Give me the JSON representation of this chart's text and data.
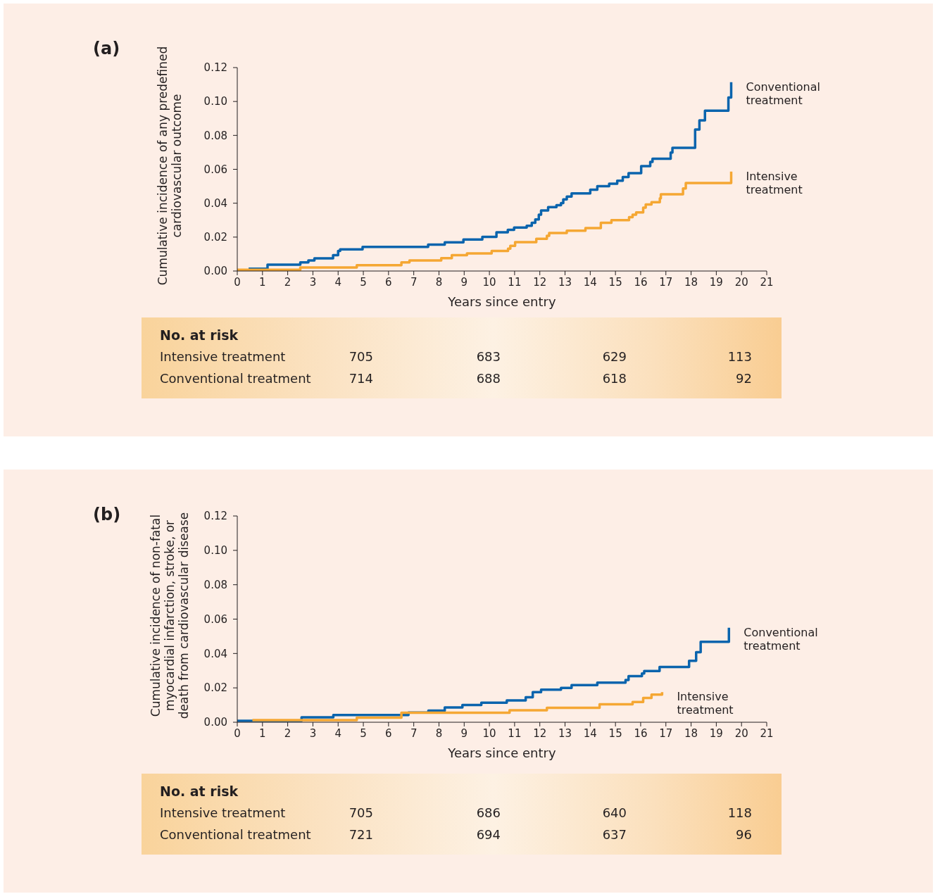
{
  "chart_data": [
    {
      "type": "step",
      "title": "(a)",
      "xlabel": "Years since entry",
      "ylabel": "Cumulative incidence of any predefined\ncardiovascular outcome",
      "xlim": [
        0,
        21
      ],
      "xticks": [
        0,
        1,
        2,
        3,
        4,
        5,
        6,
        7,
        8,
        9,
        10,
        11,
        12,
        13,
        14,
        15,
        16,
        17,
        18,
        19,
        20,
        21
      ],
      "ylim": [
        0,
        0.12
      ],
      "yticks": [
        {
          "value": 0,
          "label": "0.00"
        },
        {
          "value": 0.02,
          "label": "0.02"
        },
        {
          "value": 0.04,
          "label": "0.04"
        },
        {
          "value": 0.06,
          "label": "0.06"
        },
        {
          "value": 0.08,
          "label": "0.08"
        },
        {
          "value": 0.1,
          "label": "0.10"
        },
        {
          "value": 0.12,
          "label": "0.12"
        }
      ],
      "series": [
        {
          "name": "Conventional treatment",
          "color": "#0a64ad",
          "x": [
            0.45,
            1.2,
            2.5,
            2.82,
            3.06,
            3.8,
            4.0,
            4.08,
            4.97,
            7.57,
            8.23,
            8.97,
            9.72,
            10.28,
            10.73,
            10.98,
            11.48,
            11.68,
            11.82,
            11.96,
            12.05,
            12.33,
            12.66,
            12.84,
            12.93,
            13.07,
            13.26,
            14.0,
            14.28,
            14.75,
            15.07,
            15.29,
            15.52,
            16.02,
            16.38,
            16.47,
            17.19,
            17.26,
            18.16,
            18.33,
            18.55,
            19.48,
            19.59
          ],
          "values": [
            0.0014,
            0.0037,
            0.0051,
            0.0062,
            0.0075,
            0.0093,
            0.0118,
            0.0128,
            0.0142,
            0.0156,
            0.0169,
            0.0186,
            0.0201,
            0.0228,
            0.0243,
            0.0256,
            0.0267,
            0.0284,
            0.0304,
            0.0332,
            0.0357,
            0.0377,
            0.0388,
            0.0401,
            0.0422,
            0.0439,
            0.0458,
            0.048,
            0.05,
            0.0515,
            0.0533,
            0.0554,
            0.0577,
            0.0619,
            0.0644,
            0.0662,
            0.0699,
            0.0727,
            0.0835,
            0.0889,
            0.0946,
            0.1024,
            0.1114
          ]
        },
        {
          "name": "Intensive treatment",
          "color": "#f5a733",
          "x": [
            0,
            2.5,
            4.74,
            6.51,
            6.83,
            8.09,
            8.51,
            9.11,
            10.09,
            10.74,
            10.83,
            11.02,
            11.86,
            12.28,
            12.37,
            13.07,
            13.81,
            14.42,
            14.84,
            15.54,
            15.68,
            15.82,
            16.1,
            16.2,
            16.43,
            16.76,
            16.8,
            17.68,
            17.79,
            19.59
          ],
          "values": [
            0.0007,
            0.0021,
            0.0034,
            0.0051,
            0.0062,
            0.0076,
            0.0093,
            0.0104,
            0.0118,
            0.0132,
            0.0148,
            0.017,
            0.019,
            0.0208,
            0.0224,
            0.0238,
            0.0253,
            0.0284,
            0.03,
            0.0318,
            0.0332,
            0.0346,
            0.0374,
            0.0392,
            0.0406,
            0.0429,
            0.0453,
            0.0487,
            0.0519,
            0.0586
          ]
        }
      ],
      "marker": "none",
      "annotations": [
        "No. at risk",
        "Intensive treatment",
        "705",
        "683",
        "629",
        "113",
        "Conventional treatment",
        "714",
        "688",
        "618",
        "92"
      ]
    },
    {
      "type": "step",
      "title": "(b)",
      "xlabel": "Years since entry",
      "ylabel": "Cumulative incidence of non-fatal\nmyocardial infarction, stroke, or\ndeath from cardiovascular disease",
      "xlim": [
        0,
        21
      ],
      "xticks": [
        0,
        1,
        2,
        3,
        4,
        5,
        6,
        7,
        8,
        9,
        10,
        11,
        12,
        13,
        14,
        15,
        16,
        17,
        18,
        19,
        20,
        21
      ],
      "ylim": [
        0,
        0.12
      ],
      "yticks": [
        {
          "value": 0,
          "label": "0.00"
        },
        {
          "value": 0.02,
          "label": "0.02"
        },
        {
          "value": 0.04,
          "label": "0.04"
        },
        {
          "value": 0.06,
          "label": "0.06"
        },
        {
          "value": 0.08,
          "label": "0.08"
        },
        {
          "value": 0.1,
          "label": "0.10"
        },
        {
          "value": 0.12,
          "label": "0.12"
        }
      ],
      "series": [
        {
          "name": "Conventional treatment",
          "color": "#0a64ad",
          "x": [
            0,
            2.55,
            3.81,
            6.79,
            7.58,
            8.23,
            8.93,
            9.68,
            10.69,
            11.44,
            11.72,
            12.05,
            12.84,
            13.26,
            14.28,
            15.4,
            15.52,
            16.05,
            16.14,
            16.75,
            17.92,
            18.2,
            18.38,
            19.5
          ],
          "values": [
            0.0008,
            0.0029,
            0.0042,
            0.0056,
            0.0068,
            0.0086,
            0.01,
            0.0114,
            0.0127,
            0.0145,
            0.0175,
            0.0189,
            0.02,
            0.0216,
            0.023,
            0.0246,
            0.0268,
            0.0284,
            0.0298,
            0.0322,
            0.0357,
            0.0407,
            0.0468,
            0.055
          ]
        },
        {
          "name": "Intensive treatment",
          "color": "#f5a733",
          "x": [
            0.6,
            4.74,
            6.51,
            10.8,
            12.28,
            14.37,
            15.68,
            16.1,
            16.43,
            16.85
          ],
          "values": [
            0.0012,
            0.0027,
            0.0055,
            0.007,
            0.0084,
            0.0104,
            0.0118,
            0.0141,
            0.0161,
            0.0175
          ]
        }
      ],
      "marker": "none",
      "annotations": [
        "No. at risk",
        "Intensive treatment",
        "705",
        "686",
        "640",
        "118",
        "Conventional treatment",
        "721",
        "694",
        "637",
        "96"
      ]
    }
  ]
}
